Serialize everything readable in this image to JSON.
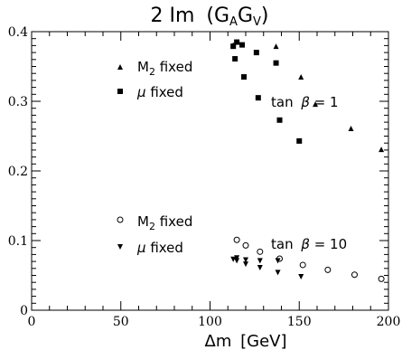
{
  "chart_data": {
    "type": "scatter",
    "title_main": "2 Im",
    "title_paren": "(G",
    "title_sub_a": "A",
    "title_g2": "G",
    "title_sub_v": "V",
    "title_close": ")",
    "xlabel_main": "Δm",
    "xlabel_unit": "[GeV]",
    "xlim": [
      0,
      200
    ],
    "ylim": [
      0,
      0.4
    ],
    "xticks": [
      0,
      50,
      100,
      150,
      200
    ],
    "yticks": [
      0,
      0.1,
      0.2,
      0.3,
      0.4
    ],
    "xtick_labels": [
      "0",
      "50",
      "100",
      "150",
      "200"
    ],
    "ytick_labels": [
      "0",
      "0.1",
      "0.2",
      "0.3",
      "0.4"
    ],
    "grid": false,
    "annotations": [
      {
        "id": "tanb1",
        "prefix": "tan",
        "symbol": "β",
        "suffix": " = 1"
      },
      {
        "id": "tanb10",
        "prefix": "tan",
        "symbol": "β",
        "suffix": " = 10"
      }
    ],
    "legend": [
      {
        "id": "leg-m2-1",
        "marker": "triangle-up",
        "label_main": "M",
        "label_sub": "2",
        "label_rest": " fixed"
      },
      {
        "id": "leg-mu-1",
        "marker": "square",
        "label_main": "μ",
        "label_sub": "",
        "label_rest": " fixed"
      },
      {
        "id": "leg-m2-10",
        "marker": "circle-open",
        "label_main": "M",
        "label_sub": "2",
        "label_rest": " fixed"
      },
      {
        "id": "leg-mu-10",
        "marker": "triangle-down",
        "label_main": "μ",
        "label_sub": "",
        "label_rest": " fixed"
      }
    ],
    "series": [
      {
        "id": "m2-tanb1",
        "marker": "triangle-up",
        "points": [
          [
            113,
            0.381
          ],
          [
            137,
            0.379
          ],
          [
            151,
            0.335
          ],
          [
            159,
            0.296
          ],
          [
            179,
            0.261
          ],
          [
            196,
            0.231
          ]
        ]
      },
      {
        "id": "mu-tanb1",
        "marker": "square",
        "points": [
          [
            113,
            0.379
          ],
          [
            115,
            0.385
          ],
          [
            114,
            0.361
          ],
          [
            118,
            0.381
          ],
          [
            119,
            0.335
          ],
          [
            126,
            0.37
          ],
          [
            127,
            0.305
          ],
          [
            137,
            0.355
          ],
          [
            139,
            0.273
          ],
          [
            150,
            0.243
          ]
        ]
      },
      {
        "id": "m2-tanb10",
        "marker": "circle-open",
        "points": [
          [
            115,
            0.101
          ],
          [
            120,
            0.093
          ],
          [
            128,
            0.084
          ],
          [
            139,
            0.074
          ],
          [
            152,
            0.065
          ],
          [
            166,
            0.058
          ],
          [
            181,
            0.051
          ],
          [
            196,
            0.045
          ]
        ]
      },
      {
        "id": "mu-tanb10",
        "marker": "triangle-down",
        "points": [
          [
            113,
            0.073
          ],
          [
            115,
            0.071
          ],
          [
            115,
            0.075
          ],
          [
            120,
            0.072
          ],
          [
            120,
            0.066
          ],
          [
            128,
            0.071
          ],
          [
            128,
            0.061
          ],
          [
            138,
            0.071
          ],
          [
            138,
            0.054
          ],
          [
            151,
            0.048
          ]
        ]
      }
    ]
  }
}
